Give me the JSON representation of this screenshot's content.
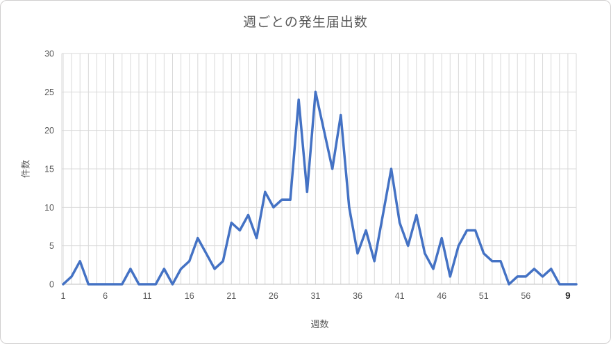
{
  "chart_data": {
    "type": "line",
    "title": "週ごとの発生届出数",
    "xlabel": "週数",
    "ylabel": "件数",
    "ylim": [
      0,
      30
    ],
    "yticks": [
      0,
      5,
      10,
      15,
      20,
      25,
      30
    ],
    "x": [
      1,
      2,
      3,
      4,
      5,
      6,
      7,
      8,
      9,
      10,
      11,
      12,
      13,
      14,
      15,
      16,
      17,
      18,
      19,
      20,
      21,
      22,
      23,
      24,
      25,
      26,
      27,
      28,
      29,
      30,
      31,
      32,
      33,
      34,
      35,
      36,
      37,
      38,
      39,
      40,
      41,
      42,
      43,
      44,
      45,
      46,
      47,
      48,
      49,
      50,
      51,
      52,
      53,
      54,
      55,
      56,
      57,
      58,
      59,
      60,
      61,
      62
    ],
    "values": [
      0,
      1,
      3,
      0,
      0,
      0,
      0,
      0,
      2,
      0,
      0,
      0,
      2,
      0,
      2,
      3,
      6,
      4,
      2,
      3,
      8,
      7,
      9,
      6,
      12,
      10,
      11,
      11,
      24,
      12,
      25,
      20,
      15,
      22,
      10,
      4,
      7,
      3,
      9,
      15,
      8,
      5,
      9,
      4,
      2,
      6,
      1,
      5,
      7,
      7,
      4,
      3,
      3,
      0,
      1,
      1,
      2,
      1,
      2,
      0,
      0,
      0
    ],
    "x_tick_positions": [
      1,
      6,
      11,
      16,
      21,
      26,
      31,
      36,
      41,
      46,
      51,
      56,
      61
    ],
    "x_tick_labels": [
      "1",
      "6",
      "11",
      "16",
      "21",
      "26",
      "31",
      "36",
      "41",
      "46",
      "51",
      "56",
      "9"
    ],
    "last_x_tick_bold": true,
    "legend": "none",
    "grid": "both",
    "line_color": "#4472C4",
    "grid_color": "#D9D9D9",
    "axis_line_color": "#BFBFBF",
    "label_color": "#595959",
    "last_x_label_color": "#262626"
  }
}
